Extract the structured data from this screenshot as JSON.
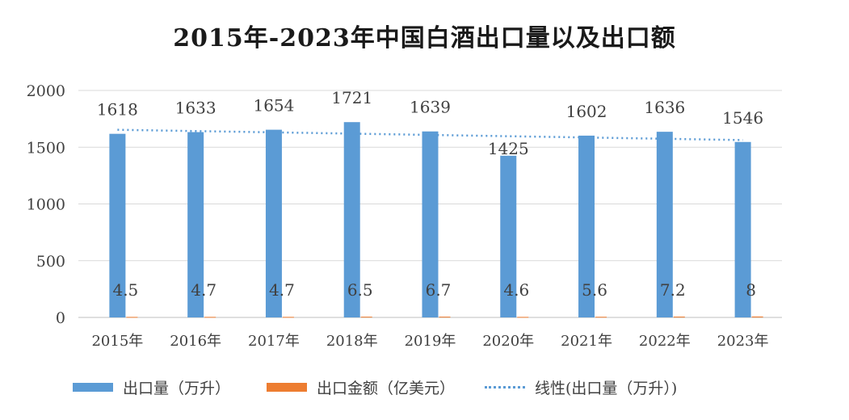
{
  "chart_data": {
    "type": "bar",
    "title": "2015年-2023年中国白酒出口量以及出口额",
    "categories": [
      "2015年",
      "2016年",
      "2017年",
      "2018年",
      "2019年",
      "2020年",
      "2021年",
      "2022年",
      "2023年"
    ],
    "series": [
      {
        "name": "出口量（万升）",
        "values": [
          1618,
          1633,
          1654,
          1721,
          1639,
          1425,
          1602,
          1636,
          1546
        ],
        "color": "#5b9bd5"
      },
      {
        "name": "出口金额（亿美元）",
        "values": [
          4.5,
          4.7,
          4.7,
          6.5,
          6.7,
          4.6,
          5.6,
          7.2,
          8
        ],
        "color": "#ed7d31"
      }
    ],
    "trendline": {
      "name": "线性(出口量（万升）)",
      "style": "dotted",
      "color": "#5b9bd5"
    },
    "ylim": [
      0,
      2000
    ],
    "yticks": [
      0,
      500,
      1000,
      1500,
      2000
    ],
    "xlabel": "",
    "ylabel": "",
    "grid": true,
    "legend": "bottom"
  }
}
